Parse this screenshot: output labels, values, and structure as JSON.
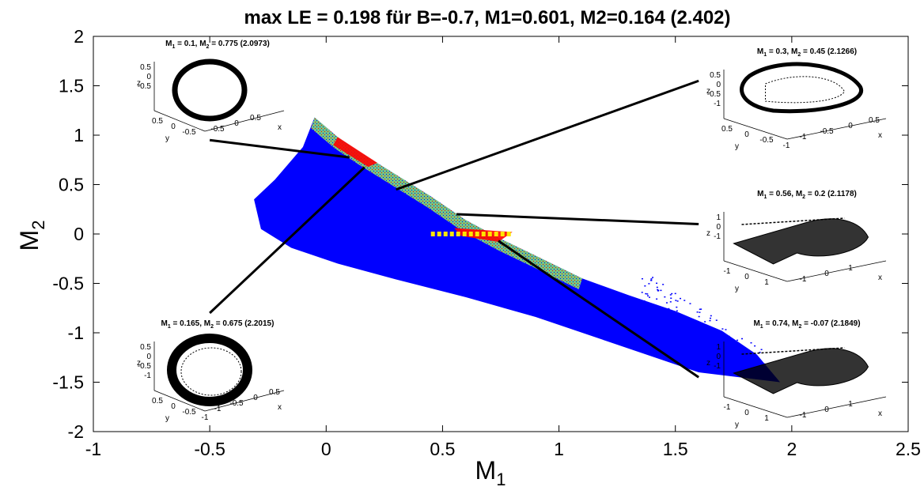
{
  "chart_data": {
    "type": "scatter",
    "title": "max LE = 0.198 für B=-0.7, M1=0.601, M2=0.164 (2.402)",
    "xlabel": "M",
    "xlabel_sub": "1",
    "ylabel": "M",
    "ylabel_sub": "2",
    "xlim": [
      -1,
      2.5
    ],
    "ylim": [
      -2,
      2
    ],
    "xticks": [
      "-1",
      "-0.5",
      "0",
      "0.5",
      "1",
      "1.5",
      "2",
      "2.5"
    ],
    "yticks": [
      "2",
      "1.5",
      "1",
      "0.5",
      "0",
      "-0.5",
      "-1",
      "-1.5",
      "-2"
    ],
    "grid": false,
    "colors": {
      "blue": "#0000ff",
      "green": "#7ad27a",
      "red": "#ff0000",
      "yellow": "#ffe600"
    },
    "region_outline": {
      "upper_edge": [
        [
          -0.05,
          1.18
        ],
        [
          0.05,
          0.98
        ],
        [
          0.15,
          0.82
        ],
        [
          0.3,
          0.6
        ],
        [
          0.45,
          0.38
        ],
        [
          0.6,
          0.14
        ],
        [
          0.75,
          -0.05
        ],
        [
          0.9,
          -0.22
        ],
        [
          1.1,
          -0.45
        ],
        [
          1.3,
          -0.62
        ],
        [
          1.5,
          -0.78
        ],
        [
          1.7,
          -0.98
        ],
        [
          1.85,
          -1.22
        ],
        [
          1.95,
          -1.5
        ]
      ],
      "lower_edge": [
        [
          1.95,
          -1.5
        ],
        [
          1.6,
          -1.4
        ],
        [
          1.2,
          -1.08
        ],
        [
          0.9,
          -0.84
        ],
        [
          0.6,
          -0.64
        ],
        [
          0.3,
          -0.46
        ],
        [
          0.05,
          -0.3
        ],
        [
          -0.15,
          -0.14
        ],
        [
          -0.28,
          0.05
        ],
        [
          -0.31,
          0.35
        ],
        [
          -0.22,
          0.55
        ],
        [
          -0.1,
          0.88
        ],
        [
          -0.05,
          1.18
        ]
      ]
    },
    "yellow_segment": {
      "x": [
        0.45,
        0.8
      ],
      "y": 0.0
    },
    "insets": [
      {
        "label": "M1 = 0.1, M2 = 0.775  (2.0973)",
        "label_main": "M",
        "m1_sub": "1",
        "m1_val": " = 0.1, M",
        "m2_sub": "2",
        "m2_val": " = 0.775  (2.0973)",
        "point": [
          0.1,
          0.775
        ],
        "line_end": [
          -0.5,
          0.95
        ],
        "ticks": {
          "z": [
            "0.5",
            "0",
            "-0.5"
          ],
          "y": [
            "0.5",
            "0",
            "-0.5"
          ],
          "x": [
            "-0.5",
            "0",
            "0.5"
          ],
          "ylab": "y",
          "xlab": "x",
          "zlab": "z"
        }
      },
      {
        "label": "M1 = 0.3, M2 = 0.45 (2.1266)",
        "label_main": "M",
        "m1_sub": "1",
        "m1_val": " = 0.3, M",
        "m2_sub": "2",
        "m2_val": " = 0.45 (2.1266)",
        "point": [
          0.3,
          0.45
        ],
        "line_end": [
          1.6,
          1.55
        ],
        "ticks": {
          "z": [
            "0.5",
            "0",
            "-0.5",
            "-1"
          ],
          "y": [
            "0.5",
            "0",
            "-0.5",
            "-1"
          ],
          "x": [
            "-1",
            "-0.5",
            "0",
            "0.5"
          ],
          "ylab": "y",
          "xlab": "x",
          "zlab": "z"
        }
      },
      {
        "label": "M1 = 0.56, M2 = 0.2 (2.1178)",
        "label_main": "M",
        "m1_sub": "1",
        "m1_val": " = 0.56, M",
        "m2_sub": "2",
        "m2_val": " = 0.2 (2.1178)",
        "point": [
          0.56,
          0.2
        ],
        "line_end": [
          1.6,
          0.1
        ],
        "ticks": {
          "z": [
            "1",
            "0",
            "-1"
          ],
          "y": [
            "-1",
            "0",
            "1"
          ],
          "x": [
            "-1",
            "0",
            "1"
          ],
          "ylab": "y",
          "xlab": "x",
          "zlab": "z"
        }
      },
      {
        "label": "M1 = 0.165, M2 = 0.675 (2.2015)",
        "label_main": "M",
        "m1_sub": "1",
        "m1_val": " = 0.165, M",
        "m2_sub": "2",
        "m2_val": " = 0.675 (2.2015)",
        "point": [
          0.165,
          0.675
        ],
        "line_end": [
          -0.5,
          -0.8
        ],
        "ticks": {
          "z": [
            "0.5",
            "0",
            "-0.5",
            "-1"
          ],
          "y": [
            "0.5",
            "0",
            "-0.5",
            "-1"
          ],
          "x": [
            "-1",
            "-0.5",
            "0",
            "0.5"
          ],
          "ylab": "y",
          "xlab": "x",
          "zlab": "z"
        }
      },
      {
        "label": "M1 = 0.74, M2 = -0.07 (2.1849)",
        "label_main": "M",
        "m1_sub": "1",
        "m1_val": " = 0.74, M",
        "m2_sub": "2",
        "m2_val": " = -0.07 (2.1849)",
        "point": [
          0.74,
          -0.07
        ],
        "line_end": [
          1.6,
          -1.45
        ],
        "ticks": {
          "z": [
            "1",
            "0",
            "-1"
          ],
          "y": [
            "-1",
            "0",
            "1"
          ],
          "x": [
            "-1",
            "0",
            "1"
          ],
          "ylab": "y",
          "xlab": "x",
          "zlab": "z"
        }
      }
    ]
  }
}
